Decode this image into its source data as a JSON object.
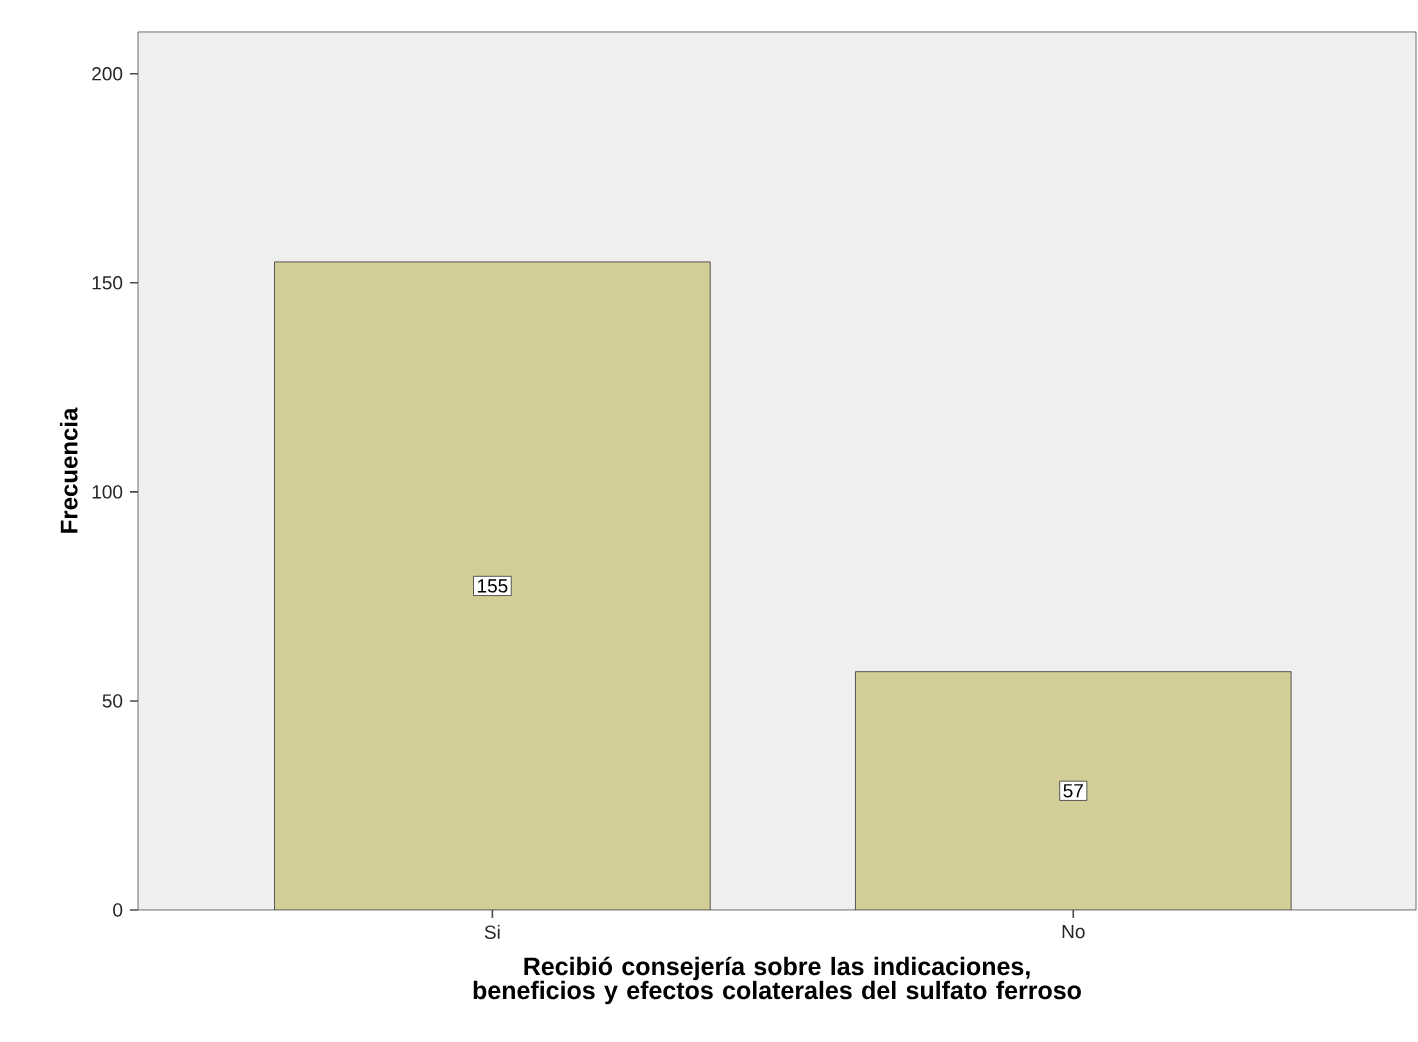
{
  "chart_data": {
    "type": "bar",
    "xlabel": "Recibió consejería sobre las indicaciones, beneficios y efectos colaterales del sulfato ferroso",
    "ylabel": "Frecuencia",
    "categories": [
      "Si",
      "No"
    ],
    "values": [
      155,
      57
    ],
    "color": "#d3ce98",
    "ylim": [
      0,
      210
    ],
    "yticks": [
      0,
      50,
      100,
      150,
      200
    ],
    "data_labels": true
  }
}
